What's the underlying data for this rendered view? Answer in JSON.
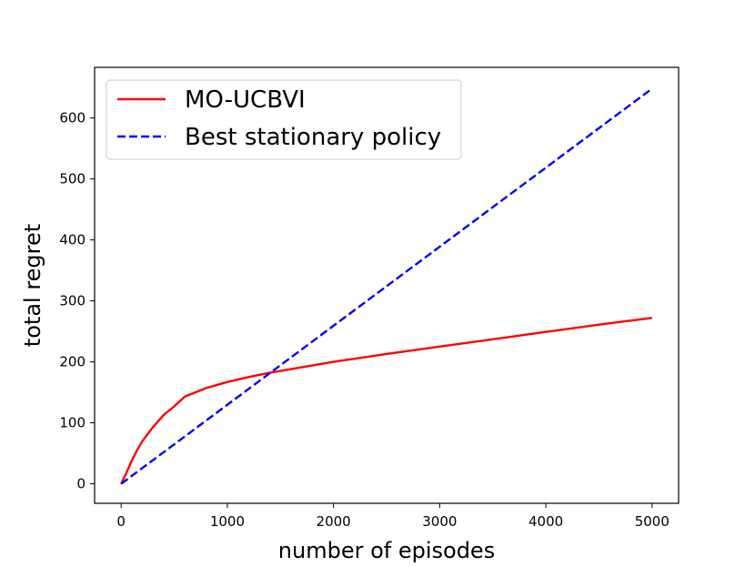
{
  "chart_data": {
    "type": "line",
    "title": "",
    "xlabel": "number of episodes",
    "ylabel": "total regret",
    "xlim": [
      -250,
      5250
    ],
    "ylim": [
      -32,
      683
    ],
    "xticks": [
      0,
      1000,
      2000,
      3000,
      4000,
      5000
    ],
    "yticks": [
      0,
      100,
      200,
      300,
      400,
      500,
      600
    ],
    "grid": false,
    "legend_position": "top-left",
    "series": [
      {
        "name": "MO-UCBVI",
        "color": "#ff0000",
        "style": "solid",
        "x": [
          0,
          50,
          100,
          150,
          200,
          300,
          400,
          500,
          600,
          700,
          800,
          1000,
          1200,
          1400,
          1600,
          1800,
          2000,
          2500,
          3000,
          3500,
          4000,
          4500,
          5000
        ],
        "y": [
          0,
          18,
          38,
          55,
          70,
          93,
          113,
          127,
          143,
          150,
          157,
          167,
          175,
          182,
          188,
          194,
          200,
          213,
          225,
          237,
          249,
          261,
          272
        ]
      },
      {
        "name": "Best stationary policy",
        "color": "#0000ff",
        "style": "dashed",
        "x": [
          0,
          5000
        ],
        "y": [
          0,
          648
        ]
      }
    ]
  }
}
